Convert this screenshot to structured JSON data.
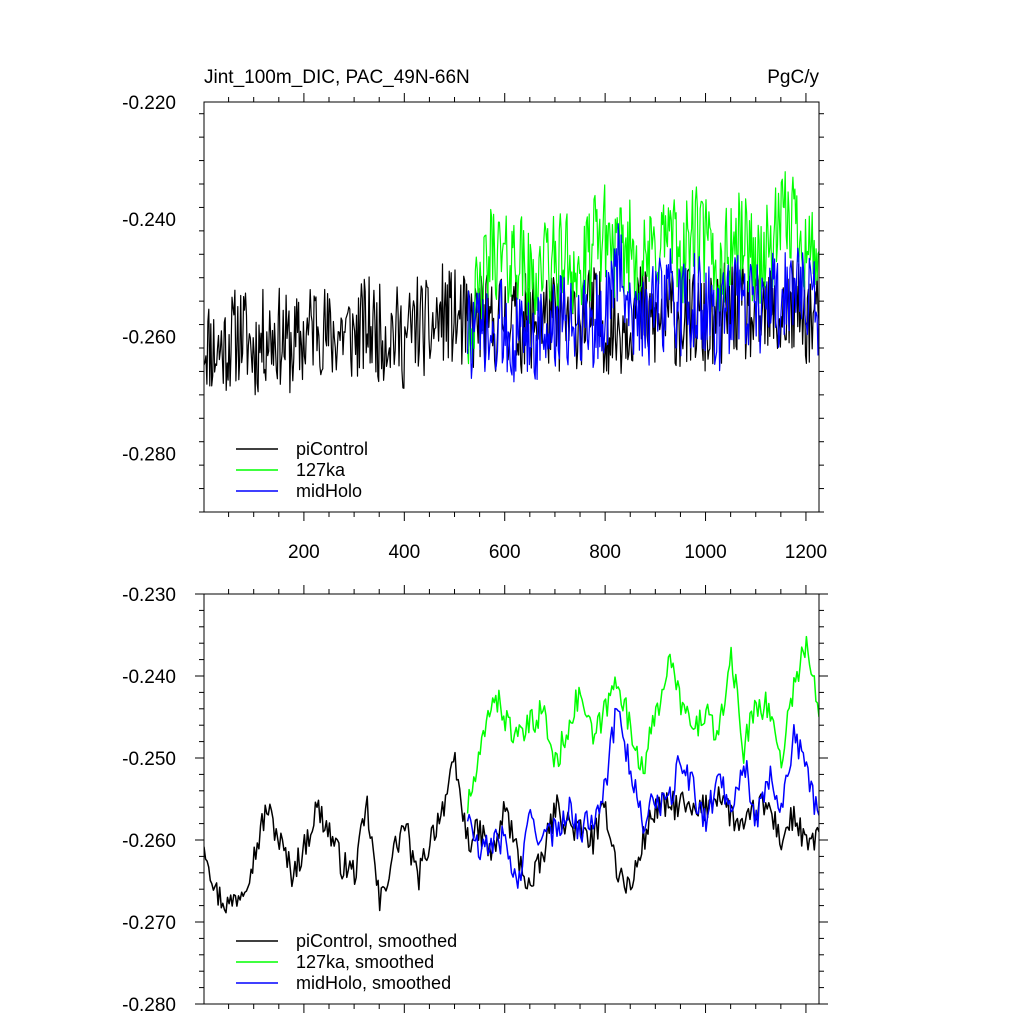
{
  "chart_data": [
    {
      "type": "line",
      "title_left": "Jint_100m_DIC, PAC_49N-66N",
      "title_right": "PgC/y",
      "xlim": [
        1,
        1226
      ],
      "ylim": [
        -0.29,
        -0.22
      ],
      "x_ticks": [
        200,
        400,
        600,
        800,
        1000,
        1200
      ],
      "x_tick_labels": [
        "200",
        "400",
        "600",
        "800",
        "1000",
        "1200"
      ],
      "y_ticks": [
        -0.22,
        -0.24,
        -0.26,
        -0.28
      ],
      "y_tick_labels": [
        "-0.220",
        "-0.240",
        "-0.260",
        "-0.280"
      ],
      "legend_position": "lower-left",
      "series": [
        {
          "name": "piControl",
          "color": "#000000",
          "x_range": [
            1,
            1226
          ],
          "x_step": 25,
          "values": [
            -0.2605,
            -0.2625,
            -0.261,
            -0.259,
            -0.2625,
            -0.2595,
            -0.26,
            -0.262,
            -0.2605,
            -0.257,
            -0.2605,
            -0.259,
            -0.26,
            -0.258,
            -0.2595,
            -0.259,
            -0.261,
            -0.2575,
            -0.2595,
            -0.256,
            -0.257,
            -0.2585,
            -0.257,
            -0.2585,
            -0.256,
            -0.258,
            -0.2575,
            -0.2565,
            -0.258,
            -0.2575,
            -0.257,
            -0.256,
            -0.258,
            -0.2585,
            -0.2565,
            -0.2555,
            -0.2585,
            -0.256,
            -0.2575,
            -0.2565,
            -0.259,
            -0.257,
            -0.2545,
            -0.256,
            -0.2575,
            -0.2565,
            -0.257,
            -0.2555,
            -0.2565,
            -0.2575
          ]
        },
        {
          "name": "127ka",
          "color": "#00ff00",
          "x_range": [
            526,
            1226
          ],
          "x_step": 25,
          "values": [
            -0.258,
            -0.2535,
            -0.2445,
            -0.248,
            -0.2455,
            -0.2515,
            -0.247,
            -0.248,
            -0.246,
            -0.2505,
            -0.2445,
            -0.242,
            -0.247,
            -0.244,
            -0.2485,
            -0.245,
            -0.242,
            -0.2475,
            -0.242,
            -0.244,
            -0.25,
            -0.244,
            -0.243,
            -0.2475,
            -0.2455,
            -0.241,
            -0.239,
            -0.245,
            -0.2455
          ]
        },
        {
          "name": "midHolo",
          "color": "#0000ff",
          "x_range": [
            526,
            1226
          ],
          "x_step": 25,
          "values": [
            -0.259,
            -0.26,
            -0.2615,
            -0.2575,
            -0.261,
            -0.259,
            -0.26,
            -0.2585,
            -0.2575,
            -0.256,
            -0.2585,
            -0.256,
            -0.248,
            -0.254,
            -0.257,
            -0.256,
            -0.253,
            -0.256,
            -0.254,
            -0.2555,
            -0.258,
            -0.254,
            -0.253,
            -0.2555,
            -0.252,
            -0.256,
            -0.25,
            -0.2545,
            -0.256
          ]
        }
      ]
    },
    {
      "type": "line",
      "xlim": [
        1,
        1226
      ],
      "ylim": [
        -0.28,
        -0.23
      ],
      "x_ticks": [
        200,
        400,
        600,
        800,
        1000,
        1200
      ],
      "y_ticks": [
        -0.23,
        -0.24,
        -0.25,
        -0.26,
        -0.27,
        -0.28
      ],
      "y_tick_labels": [
        "-0.230",
        "-0.240",
        "-0.250",
        "-0.260",
        "-0.270",
        "-0.280"
      ],
      "legend_position": "lower-left",
      "series": [
        {
          "name": "piControl, smoothed",
          "color": "#000000",
          "x_range": [
            1,
            1226
          ],
          "x_step": 25,
          "values": [
            -0.26,
            -0.2665,
            -0.268,
            -0.266,
            -0.262,
            -0.256,
            -0.26,
            -0.264,
            -0.261,
            -0.256,
            -0.259,
            -0.263,
            -0.264,
            -0.256,
            -0.268,
            -0.262,
            -0.258,
            -0.265,
            -0.26,
            -0.256,
            -0.251,
            -0.26,
            -0.259,
            -0.262,
            -0.256,
            -0.262,
            -0.266,
            -0.262,
            -0.256,
            -0.258,
            -0.259,
            -0.26,
            -0.256,
            -0.264,
            -0.266,
            -0.26,
            -0.256,
            -0.256,
            -0.2555,
            -0.257,
            -0.256,
            -0.254,
            -0.257,
            -0.259,
            -0.256,
            -0.256,
            -0.26,
            -0.257,
            -0.261,
            -0.259
          ]
        },
        {
          "name": "127ka, smoothed",
          "color": "#00ff00",
          "x_range": [
            526,
            1226
          ],
          "x_step": 25,
          "values": [
            -0.256,
            -0.25,
            -0.242,
            -0.245,
            -0.248,
            -0.246,
            -0.244,
            -0.251,
            -0.246,
            -0.242,
            -0.248,
            -0.244,
            -0.24,
            -0.247,
            -0.251,
            -0.245,
            -0.238,
            -0.243,
            -0.247,
            -0.244,
            -0.248,
            -0.237,
            -0.249,
            -0.243,
            -0.244,
            -0.25,
            -0.241,
            -0.236,
            -0.245
          ]
        },
        {
          "name": "midHolo, smoothed",
          "color": "#0000ff",
          "x_range": [
            526,
            1226
          ],
          "x_step": 25,
          "values": [
            -0.257,
            -0.262,
            -0.26,
            -0.26,
            -0.266,
            -0.257,
            -0.26,
            -0.259,
            -0.256,
            -0.259,
            -0.257,
            -0.253,
            -0.243,
            -0.252,
            -0.258,
            -0.255,
            -0.256,
            -0.25,
            -0.254,
            -0.258,
            -0.252,
            -0.256,
            -0.25,
            -0.258,
            -0.252,
            -0.256,
            -0.247,
            -0.252,
            -0.257
          ]
        }
      ]
    }
  ]
}
